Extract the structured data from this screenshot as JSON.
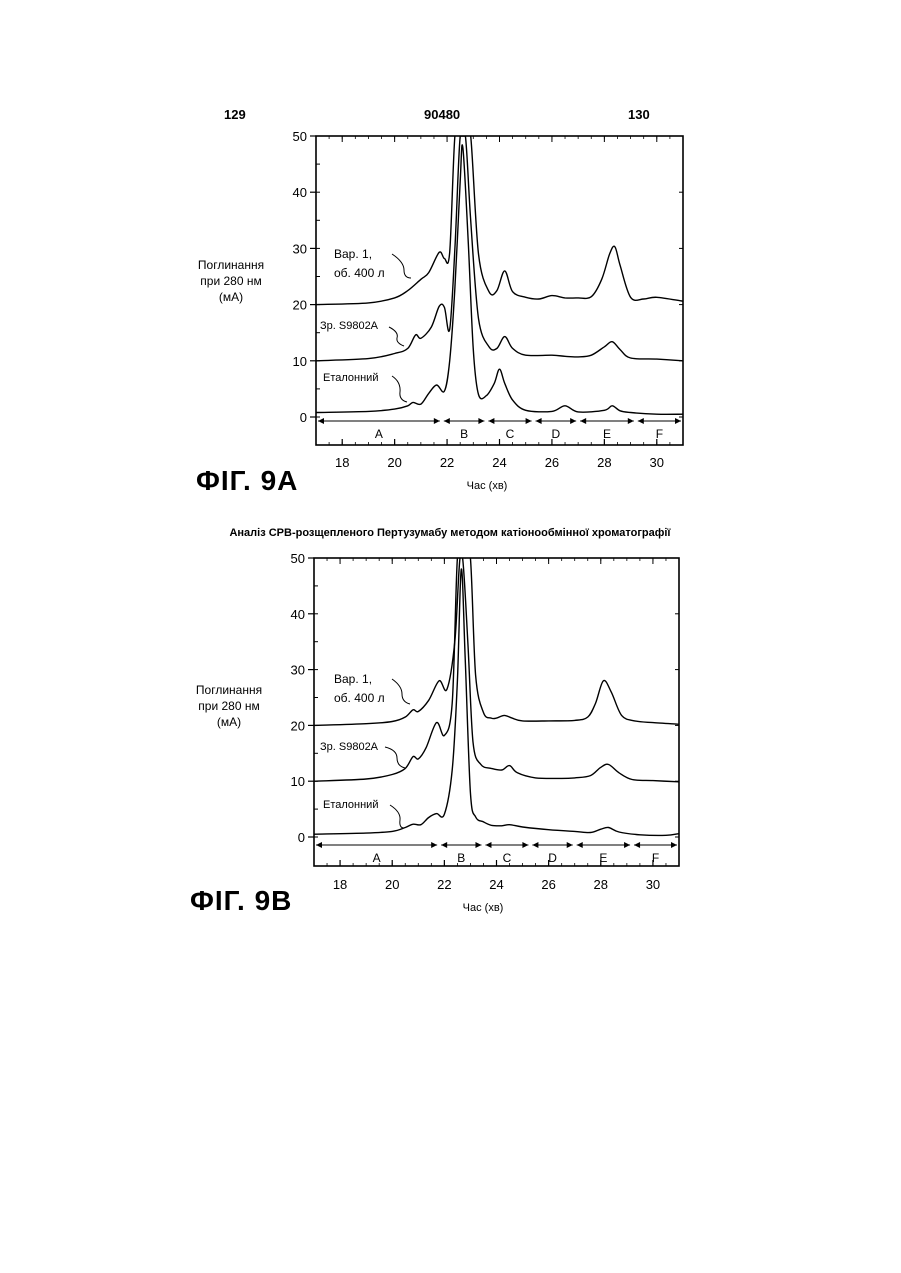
{
  "header": {
    "left": "129",
    "center": "90480",
    "right": "130"
  },
  "figures": [
    {
      "label": "ФІГ. 9A",
      "ylabel": [
        "Поглинання",
        "при 280 нм",
        "(мА)"
      ],
      "xlabel": "Час (хв)",
      "traces": [
        "Вар. 1,",
        "об. 400 л",
        "Зр.  S9802A",
        "Еталонний"
      ],
      "regions": [
        "A",
        "B",
        "C",
        "D",
        "E",
        "F"
      ]
    },
    {
      "subtitle": "Аналіз CPB-розщепленого Пертузумабу методом катіонообмінної хроматографії",
      "label": "ФІГ. 9B",
      "ylabel": [
        "Поглинання",
        "при 280 нм",
        "(мА)"
      ],
      "xlabel": "Час (хв)",
      "traces": [
        "Вар. 1,",
        "об. 400 л",
        "Зр.  S9802A",
        "Еталонний"
      ],
      "regions": [
        "A",
        "B",
        "C",
        "D",
        "E",
        "F"
      ]
    }
  ],
  "chart_data": [
    {
      "type": "line",
      "xlabel": "Час (хв)",
      "ylabel": "Поглинання при 280 нм (мА)",
      "xlim": [
        17,
        31
      ],
      "ylim": [
        0,
        50
      ],
      "xticks": [
        18,
        20,
        22,
        24,
        26,
        28,
        30
      ],
      "yticks": [
        0,
        10,
        20,
        30,
        40,
        50
      ],
      "regions": [
        {
          "name": "A",
          "from": 17,
          "to": 21.8
        },
        {
          "name": "B",
          "from": 21.8,
          "to": 23.5
        },
        {
          "name": "C",
          "from": 23.5,
          "to": 25.3
        },
        {
          "name": "D",
          "from": 25.3,
          "to": 27
        },
        {
          "name": "E",
          "from": 27,
          "to": 29.2
        },
        {
          "name": "F",
          "from": 29.2,
          "to": 31
        }
      ],
      "series": [
        {
          "name": "Вар. 1, об. 400 л",
          "x": [
            17,
            19,
            20,
            20.5,
            21,
            21.3,
            21.7,
            21.9,
            22.1,
            22.3,
            22.5,
            22.7,
            22.9,
            23.2,
            23.6,
            23.9,
            24.2,
            24.5,
            25,
            25.5,
            26,
            26.5,
            27,
            27.5,
            27.9,
            28.2,
            28.4,
            28.6,
            29,
            29.5,
            30,
            31
          ],
          "y": [
            20,
            20.3,
            21.2,
            22.5,
            24.5,
            25.7,
            29.3,
            28.2,
            29.3,
            50,
            50,
            50,
            50,
            29,
            22.3,
            22.5,
            26,
            22.3,
            21.3,
            21,
            21.6,
            21.2,
            21.2,
            21.4,
            24.5,
            29,
            30.3,
            27,
            21.3,
            21,
            21.3,
            20.6
          ]
        },
        {
          "name": "Зр.  S9802A",
          "x": [
            17,
            19,
            20,
            20.5,
            20.8,
            21,
            21.4,
            21.7,
            21.9,
            22.1,
            22.3,
            22.5,
            22.7,
            22.9,
            23.2,
            23.6,
            23.9,
            24.2,
            24.5,
            25,
            26,
            26.5,
            27,
            27.5,
            28,
            28.3,
            28.6,
            29,
            30,
            31
          ],
          "y": [
            10,
            10.4,
            11.3,
            12.2,
            14.6,
            14,
            16,
            19.7,
            19.5,
            15.6,
            30,
            50,
            50,
            35,
            17.5,
            12.5,
            12.2,
            14.3,
            12.2,
            11,
            11,
            10.8,
            10.7,
            11,
            12.5,
            13.4,
            12,
            10.5,
            10.3,
            10
          ]
        },
        {
          "name": "Еталонний",
          "x": [
            17,
            19,
            20,
            20.5,
            20.7,
            21,
            21.3,
            21.6,
            21.9,
            22.1,
            22.3,
            22.5,
            22.6,
            22.8,
            23,
            23.2,
            23.5,
            23.8,
            24,
            24.2,
            24.5,
            25,
            26,
            26.5,
            27,
            28,
            28.3,
            28.6,
            29,
            30,
            31
          ],
          "y": [
            0.8,
            1.0,
            1.4,
            2.0,
            2.6,
            2.3,
            4.2,
            5.7,
            4.6,
            10,
            23,
            42,
            48,
            32,
            12,
            4,
            3.8,
            6,
            8.5,
            6,
            3,
            1.2,
            1.0,
            2.0,
            0.9,
            1.2,
            2.0,
            1.1,
            0.8,
            0.5,
            0.5
          ]
        }
      ]
    },
    {
      "type": "line",
      "title": "Аналіз CPB-розщепленого Пертузумабу методом катіонообмінної хроматографії",
      "xlabel": "Час (хв)",
      "ylabel": "Поглинання при 280 нм (мА)",
      "xlim": [
        17,
        31
      ],
      "ylim": [
        0,
        50
      ],
      "xticks": [
        18,
        20,
        22,
        24,
        26,
        28,
        30
      ],
      "yticks": [
        0,
        10,
        20,
        30,
        40,
        50
      ],
      "regions": [
        {
          "name": "A",
          "from": 17,
          "to": 21.8
        },
        {
          "name": "B",
          "from": 21.8,
          "to": 23.5
        },
        {
          "name": "C",
          "from": 23.5,
          "to": 25.3
        },
        {
          "name": "D",
          "from": 25.3,
          "to": 27
        },
        {
          "name": "E",
          "from": 27,
          "to": 29.2
        },
        {
          "name": "F",
          "from": 29.2,
          "to": 31
        }
      ],
      "series": [
        {
          "name": "Вар. 1, об. 400 л",
          "x": [
            17,
            19,
            20,
            20.5,
            20.8,
            21,
            21.4,
            21.8,
            22.1,
            22.4,
            22.6,
            22.8,
            23,
            23.2,
            23.5,
            23.8,
            24,
            24.3,
            24.6,
            25,
            26,
            27,
            27.5,
            27.8,
            28.1,
            28.4,
            28.8,
            29.3,
            30,
            31
          ],
          "y": [
            20,
            20.3,
            20.7,
            21.5,
            22.8,
            22.5,
            24.5,
            28,
            26.5,
            35,
            50,
            50,
            50,
            29,
            22.3,
            21.3,
            21.3,
            21.8,
            21.3,
            20.8,
            20.8,
            20.9,
            21.5,
            24,
            28,
            26,
            21.8,
            20.8,
            20.5,
            20.2
          ]
        },
        {
          "name": "Зр.  S9802A",
          "x": [
            17,
            19,
            20,
            20.5,
            20.8,
            21,
            21.3,
            21.7,
            22,
            22.3,
            22.5,
            22.7,
            22.9,
            23.1,
            23.4,
            23.8,
            24.2,
            24.5,
            24.8,
            25.5,
            26.5,
            27,
            27.6,
            28,
            28.3,
            28.7,
            29.2,
            30,
            31
          ],
          "y": [
            10,
            10.4,
            11.2,
            12.3,
            14.4,
            14,
            16,
            20.5,
            18.2,
            24,
            50,
            50,
            35,
            17,
            13,
            12.3,
            12,
            12.8,
            11.5,
            10.6,
            10.5,
            10.6,
            11,
            12.5,
            13,
            11.5,
            10.3,
            10.1,
            9.9
          ]
        },
        {
          "name": "Еталонний",
          "x": [
            17,
            19,
            20,
            20.5,
            20.8,
            21.1,
            21.4,
            21.7,
            22,
            22.3,
            22.5,
            22.65,
            22.8,
            23,
            23.2,
            23.5,
            23.8,
            24.2,
            24.5,
            25,
            26,
            27,
            27.6,
            28,
            28.3,
            28.7,
            29.5,
            30.5,
            31
          ],
          "y": [
            0.5,
            0.7,
            1.0,
            1.7,
            2.3,
            2.2,
            3.5,
            4.2,
            4.1,
            12,
            28,
            48,
            32,
            8,
            3.6,
            2.7,
            2.1,
            2.0,
            2.2,
            1.8,
            1.3,
            1.0,
            0.8,
            1.4,
            1.7,
            0.9,
            0.4,
            0.3,
            0.6
          ]
        }
      ]
    }
  ]
}
